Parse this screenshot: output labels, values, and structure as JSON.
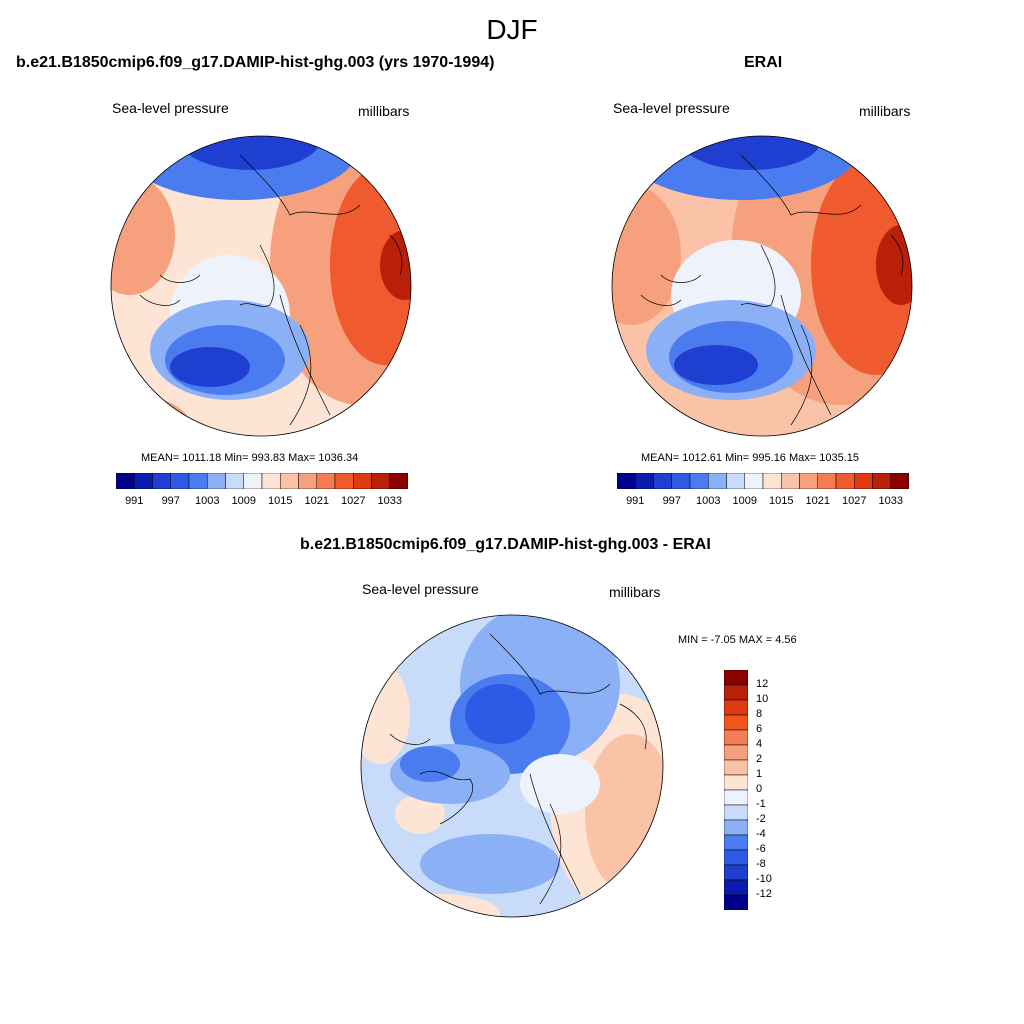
{
  "title": "DJF",
  "panels": [
    {
      "title": "b.e21.B1850cmip6.f09_g17.DAMIP-hist-ghg.003 (yrs 1970-1994)",
      "left_label": "Sea-level pressure",
      "right_label": "millibars",
      "stats": "MEAN= 1011.18  Min= 993.83  Max= 1036.34"
    },
    {
      "title": "ERAI",
      "left_label": "Sea-level pressure",
      "right_label": "millibars",
      "stats": "MEAN= 1012.61  Min= 995.16  Max= 1035.15"
    },
    {
      "title": "b.e21.B1850cmip6.f09_g17.DAMIP-hist-ghg.003 - ERAI",
      "left_label": "Sea-level pressure",
      "right_label": "millibars",
      "stats": "MIN =  -7.05 MAX =   4.56"
    }
  ],
  "colorbar_abs": {
    "labels": [
      "991",
      "997",
      "1003",
      "1009",
      "1015",
      "1021",
      "1027",
      "1033"
    ],
    "colors": [
      "#00008b",
      "#0a1cb0",
      "#1f3fd0",
      "#2e5ae6",
      "#4a7cf0",
      "#8cb0f5",
      "#c8dcfa",
      "#eef3fb",
      "#fde4d4",
      "#fac2a6",
      "#f7a07e",
      "#f47c54",
      "#ef5a2e",
      "#e03a12",
      "#b8200a",
      "#8b0000"
    ]
  },
  "colorbar_diff": {
    "labels": [
      "12",
      "10",
      "8",
      "6",
      "4",
      "2",
      "1",
      "0",
      "-1",
      "-2",
      "-4",
      "-6",
      "-8",
      "-10",
      "-12"
    ],
    "colors": [
      "#8b0000",
      "#b8200a",
      "#e03a12",
      "#f2561e",
      "#f47c54",
      "#f7a07e",
      "#fac2a6",
      "#fde4d4",
      "#eef3fb",
      "#c8dcfa",
      "#8cb0f5",
      "#4a7cf0",
      "#2e5ae6",
      "#1f3fd0",
      "#0a1cb0",
      "#00008b"
    ]
  }
}
